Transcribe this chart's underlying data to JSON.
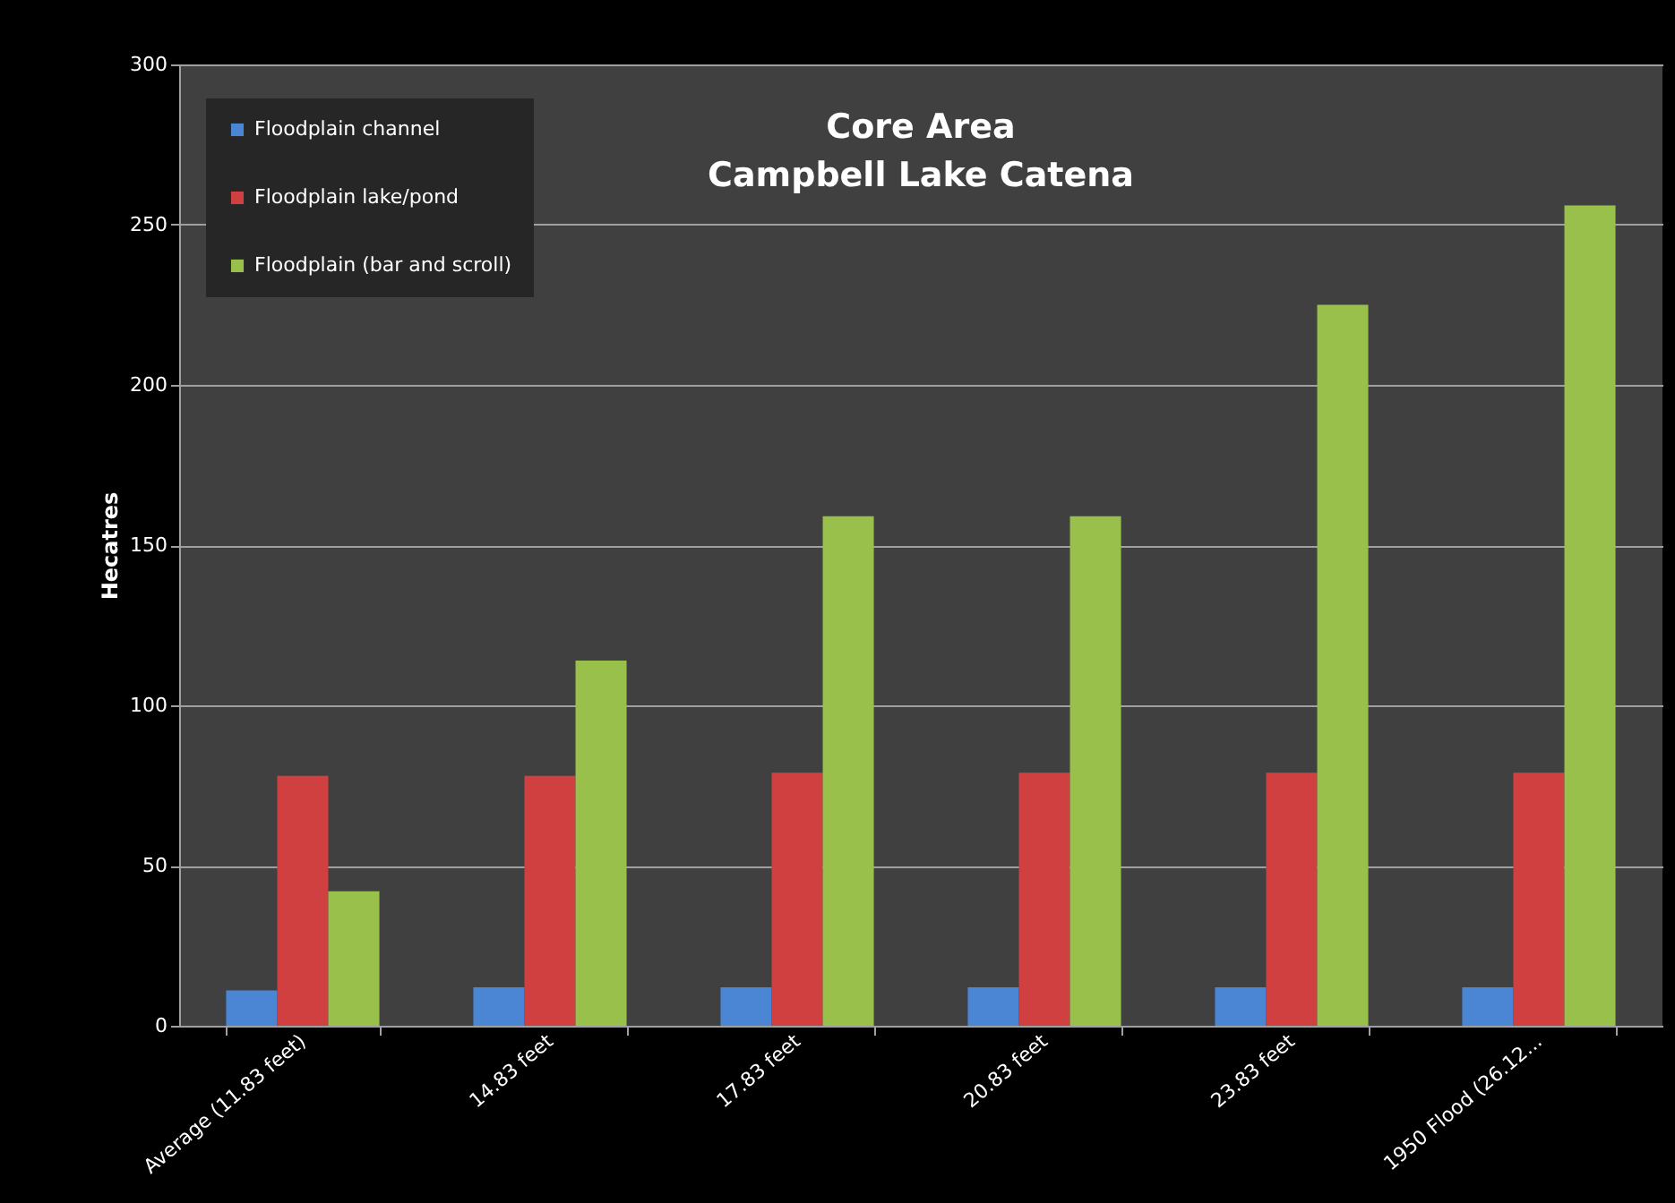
{
  "chart_data": {
    "type": "bar",
    "title": "Core Area\nCampbell Lake Catena",
    "ylabel": "Hecatres",
    "categories": [
      "Average (11.83 feet)",
      "14.83 feet",
      "17.83 feet",
      "20.83 feet",
      "23.83 feet",
      "1950 Flood (26.12..."
    ],
    "series": [
      {
        "name": "Floodplain channel",
        "color": "#4a86d4",
        "values": [
          11,
          12,
          12,
          12,
          12,
          12
        ]
      },
      {
        "name": "Floodplain lake/pond",
        "color": "#d04040",
        "values": [
          78,
          78,
          79,
          79,
          79,
          79
        ]
      },
      {
        "name": "Floodplain (bar and scroll)",
        "color": "#98c04a",
        "values": [
          42,
          114,
          159,
          159,
          225,
          256
        ]
      }
    ],
    "ylim": [
      0,
      300
    ],
    "yticks": [
      0,
      50,
      100,
      150,
      200,
      250,
      300
    ],
    "grid": "y",
    "legend": "top left"
  }
}
